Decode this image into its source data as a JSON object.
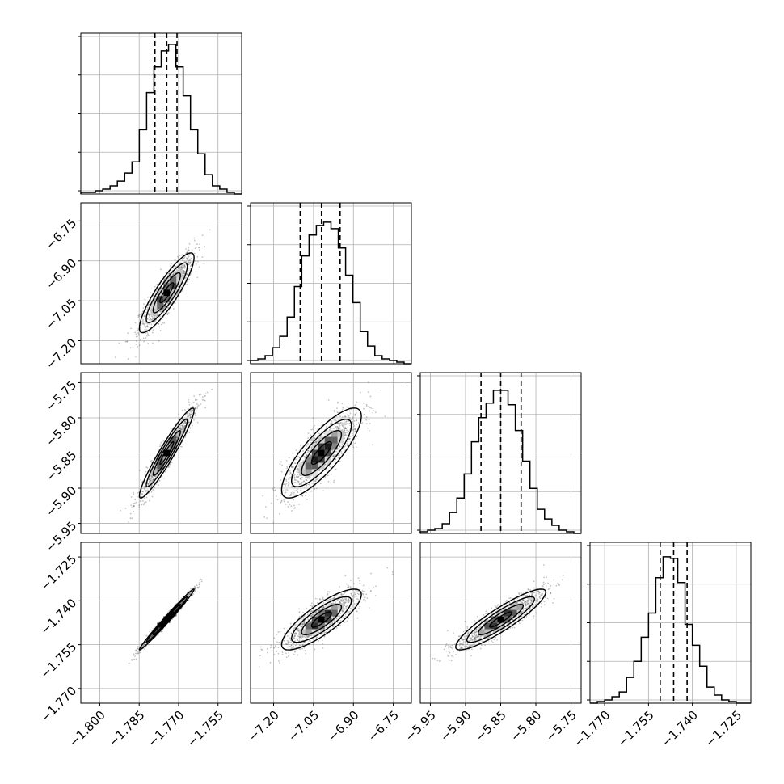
{
  "chart_data": {
    "type": "corner",
    "grid": true,
    "parameters": [
      {
        "index": 0,
        "ticks": [
          -1.8,
          -1.785,
          -1.77,
          -1.755
        ],
        "tick_labels": [
          "−1.800",
          "−1.785",
          "−1.770",
          "−1.755"
        ],
        "range": [
          -1.8072,
          -1.746
        ]
      },
      {
        "index": 1,
        "ticks": [
          -7.2,
          -7.05,
          -6.9,
          -6.75
        ],
        "tick_labels": [
          "−7.20",
          "−7.05",
          "−6.90",
          "−6.75"
        ],
        "range": [
          -7.2866,
          -6.682
        ]
      },
      {
        "index": 2,
        "ticks": [
          -5.95,
          -5.9,
          -5.85,
          -5.8,
          -5.75
        ],
        "tick_labels": [
          "−5.95",
          "−5.90",
          "−5.85",
          "−5.80",
          "−5.75"
        ],
        "range": [
          -5.9643,
          -5.7357
        ]
      },
      {
        "index": 3,
        "ticks": [
          -1.77,
          -1.755,
          -1.74,
          -1.725
        ],
        "tick_labels": [
          "−1.770",
          "−1.755",
          "−1.740",
          "−1.725"
        ],
        "range": [
          -1.775,
          -1.72
        ]
      }
    ],
    "histograms": [
      {
        "param": 0,
        "quantiles": [
          -1.779,
          -1.7745,
          -1.7706
        ],
        "edges_range": [
          -1.8072,
          -1.746
        ],
        "counts": [
          0.01,
          0.01,
          0.02,
          0.03,
          0.05,
          0.08,
          0.13,
          0.2,
          0.4,
          0.63,
          0.79,
          0.89,
          0.93,
          0.79,
          0.61,
          0.4,
          0.25,
          0.12,
          0.05,
          0.03,
          0.01,
          0.0
        ]
      },
      {
        "param": 1,
        "quantiles": [
          -7.1,
          -7.02,
          -6.95
        ],
        "edges_range": [
          -7.2866,
          -6.682
        ],
        "counts": [
          0.02,
          0.03,
          0.05,
          0.1,
          0.17,
          0.29,
          0.48,
          0.67,
          0.8,
          0.86,
          0.88,
          0.84,
          0.72,
          0.55,
          0.38,
          0.2,
          0.11,
          0.05,
          0.03,
          0.02,
          0.01,
          0.0
        ]
      },
      {
        "param": 2,
        "quantiles": [
          -5.878,
          -5.85,
          -5.821
        ],
        "edges_range": [
          -5.9643,
          -5.7357
        ],
        "counts": [
          0.01,
          0.02,
          0.03,
          0.06,
          0.13,
          0.22,
          0.37,
          0.57,
          0.72,
          0.81,
          0.89,
          0.89,
          0.8,
          0.64,
          0.45,
          0.28,
          0.15,
          0.09,
          0.05,
          0.02,
          0.01,
          0.0
        ]
      },
      {
        "param": 3,
        "quantiles": [
          -1.751,
          -1.7464,
          -1.7418
        ],
        "edges_range": [
          -1.775,
          -1.72
        ],
        "counts": [
          0.0,
          0.01,
          0.02,
          0.04,
          0.07,
          0.16,
          0.26,
          0.41,
          0.56,
          0.78,
          0.91,
          0.9,
          0.75,
          0.49,
          0.36,
          0.23,
          0.1,
          0.05,
          0.02,
          0.01,
          0.0,
          0.0
        ]
      }
    ],
    "pairs": [
      {
        "x": 0,
        "y": 1,
        "center": [
          -1.7745,
          -7.02
        ],
        "sd": [
          0.0052,
          0.075
        ],
        "corr": 0.88
      },
      {
        "x": 0,
        "y": 2,
        "center": [
          -1.7745,
          -5.85
        ],
        "sd": [
          0.0052,
          0.032
        ],
        "corr": 0.95
      },
      {
        "x": 1,
        "y": 2,
        "center": [
          -7.02,
          -5.85
        ],
        "sd": [
          0.075,
          0.032
        ],
        "corr": 0.82
      },
      {
        "x": 0,
        "y": 3,
        "center": [
          -1.7745,
          -1.7464
        ],
        "sd": [
          0.0052,
          0.0052
        ],
        "corr": 0.99
      },
      {
        "x": 1,
        "y": 3,
        "center": [
          -7.02,
          -1.7464
        ],
        "sd": [
          0.075,
          0.0052
        ],
        "corr": 0.82
      },
      {
        "x": 2,
        "y": 3,
        "center": [
          -5.85,
          -1.7464
        ],
        "sd": [
          0.032,
          0.0052
        ],
        "corr": 0.9
      }
    ],
    "colors": {
      "points": "#555555",
      "contour": "#000000",
      "grid": "#b0b0b0",
      "axes": "#000000"
    }
  }
}
